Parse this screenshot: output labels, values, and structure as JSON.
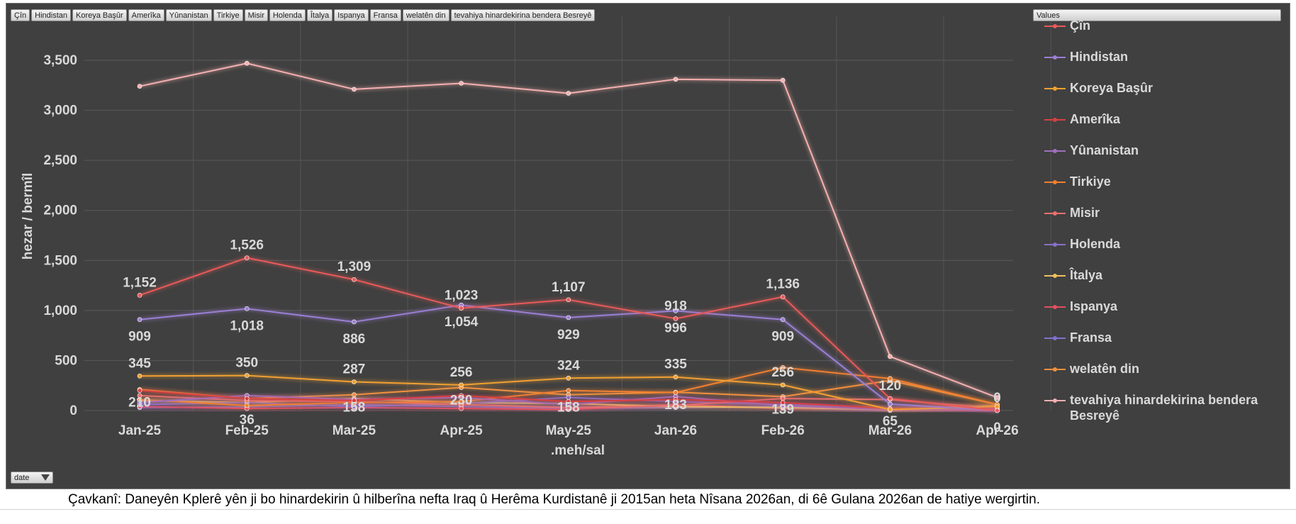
{
  "field_buttons": [
    "Çîn",
    "Hindistan",
    "Koreya Başûr",
    "Amerîka",
    "Yûnanistan",
    "Tirkiye",
    "Misir",
    "Holenda",
    "Îtalya",
    "Ispanya",
    "Fransa",
    "welatên din",
    "tevahiya hinardekirina bendera Besreyê"
  ],
  "values_button": "Values",
  "date_button": "date",
  "caption": "Çavkanî: Daneyên Kplerê yên ji bo hinardekirin û hilberîna nefta Iraq û Herêma Kurdistanê ji 2015an heta Nîsana 2026an, di 6ê Gulana 2026an de hatiye wergirtin.",
  "chart_data": {
    "type": "line",
    "title": "",
    "xlabel": ".meh/sal",
    "ylabel": "hezar / bermîl",
    "ylim": [
      0,
      3800
    ],
    "yticks": [
      0,
      500,
      1000,
      1500,
      2000,
      2500,
      3000,
      3500
    ],
    "ytick_labels": [
      "0",
      "500",
      "1,000",
      "1,500",
      "2,000",
      "2,500",
      "3,000",
      "3,500"
    ],
    "categories": [
      "Jan-25",
      "Feb-25",
      "Mar-25",
      "Apr-25",
      "May-25",
      "Jan-26",
      "Feb-26",
      "Mar-26",
      "Apr-26"
    ],
    "grid": true,
    "legend_position": "right",
    "series": [
      {
        "name": "Çîn",
        "color": "#e85a5a",
        "values": [
          1152,
          1526,
          1309,
          1023,
          1107,
          918,
          1136,
          120,
          0
        ],
        "labels": [
          true,
          true,
          true,
          true,
          true,
          true,
          true,
          true,
          true
        ],
        "label_pos": "above"
      },
      {
        "name": "Hindistan",
        "color": "#9b7fd4",
        "values": [
          909,
          1018,
          886,
          1054,
          929,
          996,
          909,
          65,
          0
        ],
        "labels": [
          true,
          true,
          true,
          true,
          true,
          true,
          true,
          true,
          true
        ],
        "label_pos": "below"
      },
      {
        "name": "Koreya Başûr",
        "color": "#f0a030",
        "values": [
          345,
          350,
          287,
          256,
          324,
          335,
          256,
          10,
          40
        ],
        "labels": [
          true,
          true,
          true,
          true,
          true,
          true,
          true,
          false,
          false
        ],
        "label_pos": "above"
      },
      {
        "name": "Amerîka",
        "color": "#d84040",
        "values": [
          200,
          120,
          100,
          150,
          90,
          110,
          80,
          20,
          30
        ],
        "labels": [
          false,
          false,
          false,
          false,
          false,
          false,
          false,
          false,
          false
        ]
      },
      {
        "name": "Yûnanistan",
        "color": "#a070c0",
        "values": [
          80,
          150,
          110,
          130,
          60,
          140,
          50,
          10,
          20
        ],
        "labels": [
          false,
          false,
          false,
          false,
          false,
          false,
          false,
          false,
          false
        ]
      },
      {
        "name": "Tirkiye",
        "color": "#f08030",
        "values": [
          110,
          50,
          80,
          90,
          200,
          180,
          430,
          320,
          60
        ],
        "labels": [
          false,
          false,
          false,
          false,
          false,
          false,
          false,
          false,
          false
        ]
      },
      {
        "name": "Misir",
        "color": "#e87070",
        "values": [
          150,
          100,
          90,
          60,
          30,
          50,
          120,
          110,
          20
        ],
        "labels": [
          false,
          false,
          false,
          false,
          false,
          false,
          false,
          false,
          false
        ]
      },
      {
        "name": "Holenda",
        "color": "#8870c8",
        "values": [
          60,
          80,
          40,
          70,
          130,
          90,
          60,
          20,
          10
        ],
        "labels": [
          false,
          false,
          false,
          false,
          false,
          false,
          false,
          false,
          false
        ]
      },
      {
        "name": "Îtalya",
        "color": "#f0c060",
        "values": [
          100,
          80,
          120,
          80,
          70,
          40,
          30,
          10,
          50
        ],
        "labels": [
          false,
          false,
          false,
          false,
          false,
          false,
          false,
          false,
          false
        ]
      },
      {
        "name": "Ispanya",
        "color": "#e05060",
        "values": [
          40,
          20,
          30,
          20,
          10,
          60,
          20,
          10,
          0
        ],
        "labels": [
          false,
          false,
          false,
          false,
          false,
          false,
          false,
          false,
          false
        ]
      },
      {
        "name": "Fransa",
        "color": "#8070d0",
        "values": [
          30,
          36,
          60,
          40,
          20,
          30,
          40,
          0,
          10
        ],
        "labels": [
          false,
          false,
          false,
          false,
          false,
          false,
          false,
          false,
          false
        ]
      },
      {
        "name": "welatên din",
        "color": "#f09040",
        "values": [
          210,
          120,
          158,
          230,
          158,
          183,
          139,
          300,
          60
        ],
        "labels": [
          false,
          false,
          false,
          false,
          false,
          false,
          false,
          false,
          false
        ]
      },
      {
        "name": "tevahiya hinardekirina bendera Besreyê",
        "color": "#f5b0b0",
        "values": [
          3240,
          3470,
          3210,
          3270,
          3170,
          3310,
          3300,
          540,
          130
        ],
        "labels": [
          false,
          false,
          false,
          false,
          false,
          false,
          false,
          false,
          false
        ]
      }
    ],
    "extra_labels": [
      {
        "category": "Jan-25",
        "value": 210,
        "text": "210"
      },
      {
        "category": "Feb-25",
        "value": 36,
        "text": "36"
      },
      {
        "category": "Mar-25",
        "value": 158,
        "text": "158"
      },
      {
        "category": "Apr-25",
        "value": 230,
        "text": "230"
      },
      {
        "category": "May-25",
        "value": 158,
        "text": "158"
      },
      {
        "category": "Jan-26",
        "value": 183,
        "text": "183"
      },
      {
        "category": "Feb-26",
        "value": 139,
        "text": "139"
      }
    ]
  }
}
